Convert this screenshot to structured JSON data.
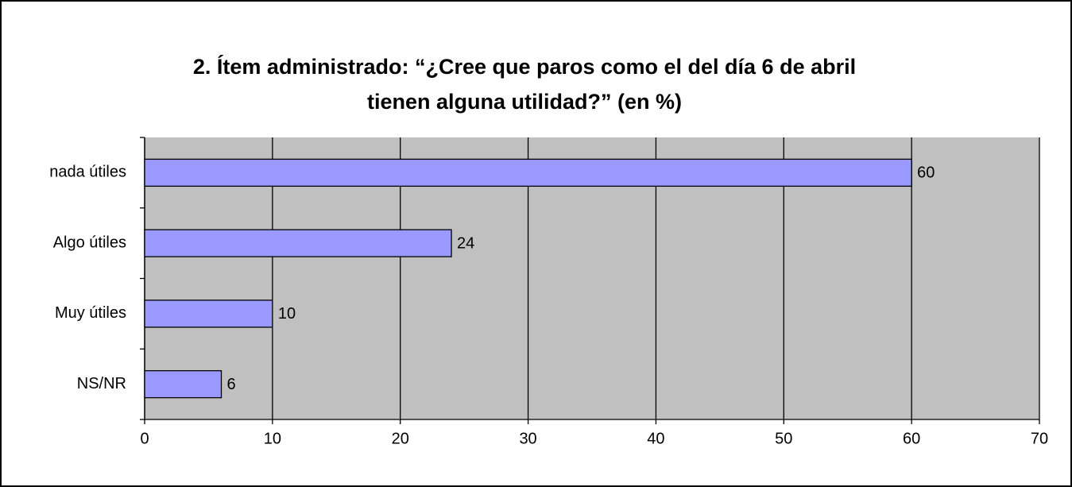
{
  "chart_data": {
    "type": "bar",
    "orientation": "horizontal",
    "title": [
      "2. Ítem administrado: “¿Cree que paros como el del día 6 de abril",
      "tienen alguna utilidad?” (en %)"
    ],
    "categories": [
      "nada útiles",
      "Algo útiles",
      "Muy útiles",
      "NS/NR"
    ],
    "values": [
      60,
      24,
      10,
      6
    ],
    "color": "#9999ff",
    "xlim": [
      0,
      70
    ],
    "xticks": [
      0,
      10,
      20,
      30,
      40,
      50,
      60,
      70
    ],
    "grid": true
  }
}
